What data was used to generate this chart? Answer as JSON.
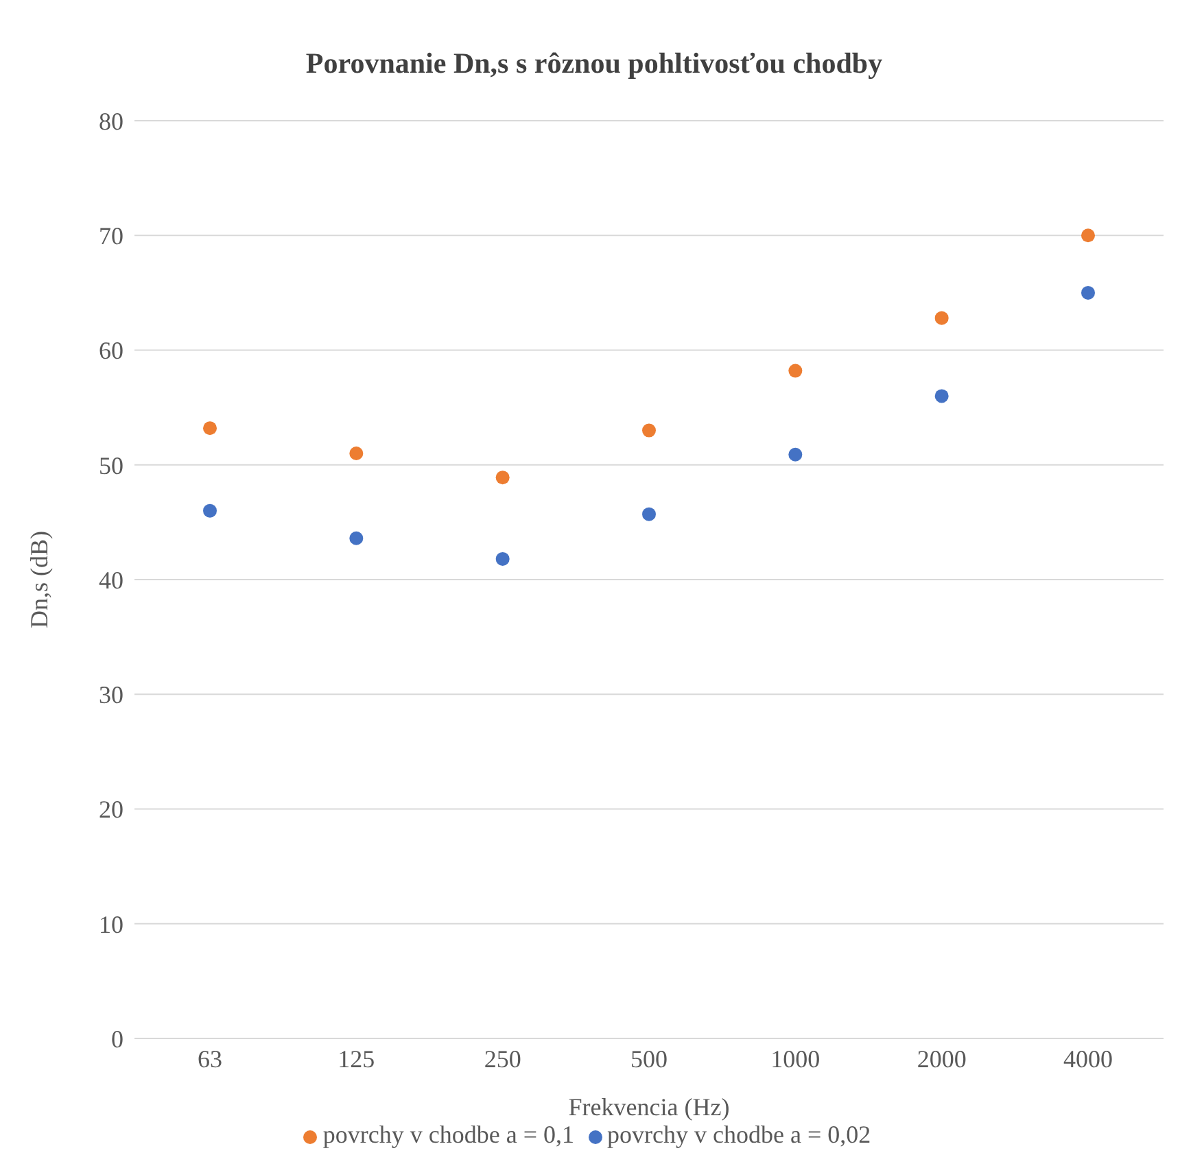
{
  "chart_data": {
    "type": "scatter",
    "title": "Porovnanie Dn,s s rôznou pohltivosťou chodby",
    "xlabel": "Frekvencia (Hz)",
    "ylabel": "Dn,s (dB)",
    "categories": [
      "63",
      "125",
      "250",
      "500",
      "1000",
      "2000",
      "4000"
    ],
    "series": [
      {
        "name": "povrchy v chodbe a = 0,1",
        "color": "#ed7d31",
        "values": [
          53.2,
          51.0,
          48.9,
          53.0,
          58.2,
          62.8,
          70.0
        ]
      },
      {
        "name": "povrchy v chodbe a = 0,02",
        "color": "#4472c4",
        "values": [
          46.0,
          43.6,
          41.8,
          45.7,
          50.9,
          56.0,
          65.0
        ]
      }
    ],
    "ylim": [
      0,
      80
    ],
    "yticks": [
      0,
      10,
      20,
      30,
      40,
      50,
      60,
      70,
      80
    ],
    "grid": "y",
    "legend": "bottom",
    "marker": "circle"
  }
}
